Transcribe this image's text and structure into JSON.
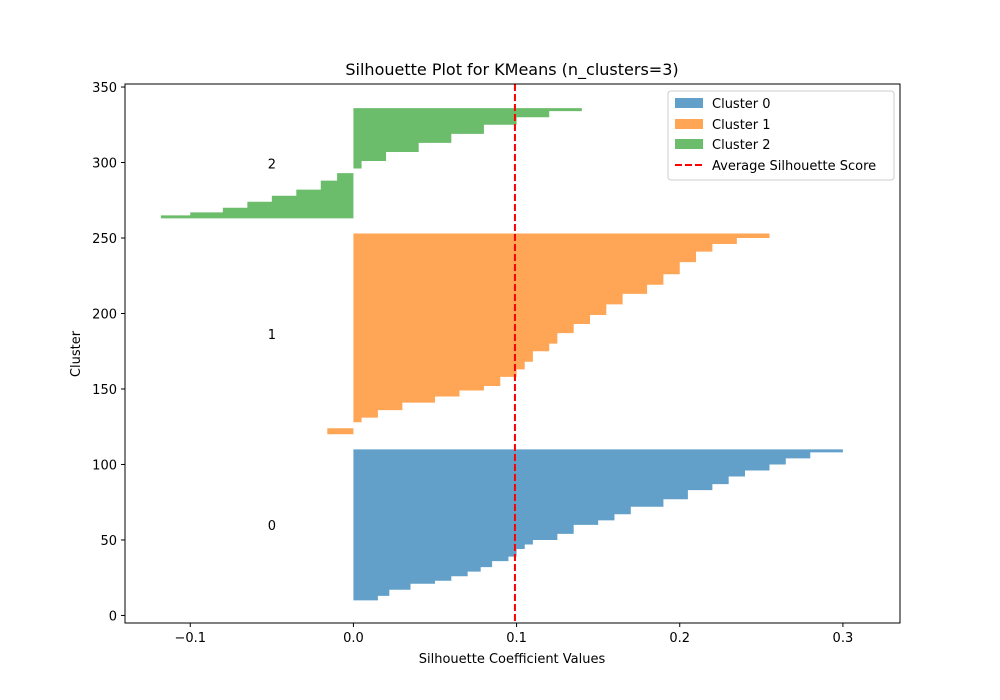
{
  "chart_data": {
    "type": "area",
    "title": "Silhouette Plot for KMeans (n_clusters=3)",
    "xlabel": "Silhouette Coefficient Values",
    "ylabel": "Cluster",
    "xlim": [
      -0.14,
      0.335
    ],
    "ylim": [
      -5,
      352
    ],
    "xticks": [
      -0.1,
      0.0,
      0.1,
      0.2,
      0.3
    ],
    "xtick_labels": [
      "−0.1",
      "0.0",
      "0.1",
      "0.2",
      "0.3"
    ],
    "yticks": [
      0,
      50,
      100,
      150,
      200,
      250,
      300,
      350
    ],
    "ytick_labels": [
      "0",
      "50",
      "100",
      "150",
      "200",
      "250",
      "300",
      "350"
    ],
    "grid": false,
    "legend_position": "top-right",
    "average_silhouette_score": 0.099,
    "average_label": "Average Silhouette Score",
    "average_color": "#ff0000",
    "series": [
      {
        "name": "Cluster 0",
        "label": "0",
        "color": "#1f77b4",
        "y_start": 10,
        "y_end": 110,
        "values": [
          [
            0.0,
            0.0
          ],
          [
            0.015,
            0.0
          ],
          [
            0.022,
            3
          ],
          [
            0.035,
            7
          ],
          [
            0.05,
            11
          ],
          [
            0.06,
            13
          ],
          [
            0.07,
            16
          ],
          [
            0.078,
            19
          ],
          [
            0.085,
            22
          ],
          [
            0.095,
            26
          ],
          [
            0.1,
            29
          ],
          [
            0.105,
            34
          ],
          [
            0.11,
            37
          ],
          [
            0.125,
            40
          ],
          [
            0.135,
            44
          ],
          [
            0.15,
            50
          ],
          [
            0.16,
            53
          ],
          [
            0.17,
            57
          ],
          [
            0.19,
            62
          ],
          [
            0.205,
            67
          ],
          [
            0.22,
            73
          ],
          [
            0.23,
            77
          ],
          [
            0.24,
            82
          ],
          [
            0.255,
            86
          ],
          [
            0.265,
            90
          ],
          [
            0.28,
            94
          ],
          [
            0.3,
            98
          ],
          [
            0.311,
            100
          ]
        ]
      },
      {
        "name": "Cluster 1",
        "label": "1",
        "color": "#ff7f0e",
        "y_start": 120,
        "y_end": 253,
        "values": [
          [
            -0.016,
            0
          ],
          [
            0.0,
            4
          ],
          [
            0.005,
            8
          ],
          [
            0.015,
            11
          ],
          [
            0.03,
            16
          ],
          [
            0.05,
            21
          ],
          [
            0.065,
            25
          ],
          [
            0.08,
            29
          ],
          [
            0.09,
            32
          ],
          [
            0.1,
            38
          ],
          [
            0.105,
            43
          ],
          [
            0.11,
            48
          ],
          [
            0.12,
            55
          ],
          [
            0.125,
            60
          ],
          [
            0.135,
            67
          ],
          [
            0.145,
            73
          ],
          [
            0.155,
            79
          ],
          [
            0.165,
            86
          ],
          [
            0.18,
            93
          ],
          [
            0.19,
            99
          ],
          [
            0.2,
            106
          ],
          [
            0.21,
            114
          ],
          [
            0.22,
            121
          ],
          [
            0.235,
            126
          ],
          [
            0.255,
            130
          ],
          [
            0.226,
            133
          ]
        ]
      },
      {
        "name": "Cluster 2",
        "label": "2",
        "color": "#2ca02c",
        "y_start": 263,
        "y_end": 336,
        "values": [
          [
            -0.118,
            0
          ],
          [
            -0.1,
            2
          ],
          [
            -0.08,
            4
          ],
          [
            -0.065,
            7
          ],
          [
            -0.05,
            11
          ],
          [
            -0.035,
            15
          ],
          [
            -0.02,
            19
          ],
          [
            -0.01,
            25
          ],
          [
            0.0,
            30
          ],
          [
            0.005,
            33
          ],
          [
            0.02,
            38
          ],
          [
            0.04,
            44
          ],
          [
            0.06,
            50
          ],
          [
            0.08,
            56
          ],
          [
            0.1,
            62
          ],
          [
            0.12,
            67
          ],
          [
            0.14,
            71
          ],
          [
            0.16,
            73
          ]
        ]
      }
    ]
  }
}
